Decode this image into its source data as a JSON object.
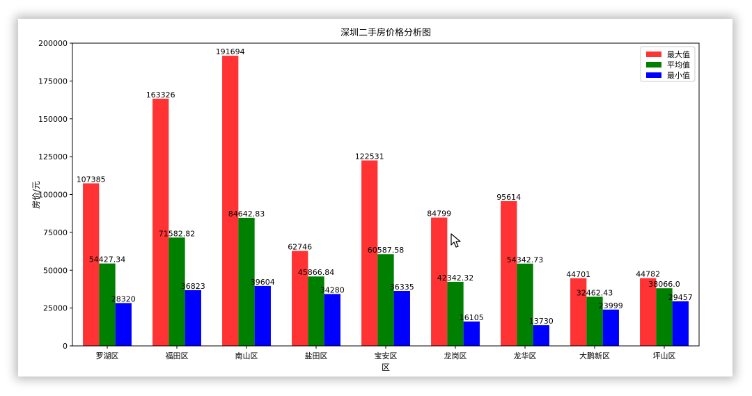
{
  "chart_data": {
    "type": "bar",
    "title": "深圳二手房价格分析图",
    "xlabel": "区",
    "ylabel": "房价/元",
    "ylim": [
      0,
      200000
    ],
    "yticks": [
      0,
      25000,
      50000,
      75000,
      100000,
      125000,
      150000,
      175000,
      200000
    ],
    "grid": false,
    "legend_position": "top-right",
    "categories": [
      "罗湖区",
      "福田区",
      "南山区",
      "盐田区",
      "宝安区",
      "龙岗区",
      "龙华区",
      "大鹏新区",
      "坪山区"
    ],
    "series": [
      {
        "name": "最大值",
        "color": "#ff3333",
        "values": [
          107385,
          163326,
          191694,
          62746,
          122531,
          84799,
          95614,
          44701,
          44782
        ],
        "labels": [
          "107385",
          "163326",
          "191694",
          "62746",
          "122531",
          "84799",
          "95614",
          "44701",
          "44782"
        ]
      },
      {
        "name": "平均值",
        "color": "#008000",
        "values": [
          54427.34,
          71582.82,
          84642.83,
          45866.84,
          60587.58,
          42342.32,
          54342.73,
          32462.43,
          38066.0
        ],
        "labels": [
          "54427.34",
          "71582.82",
          "84642.83",
          "45866.84",
          "60587.58",
          "42342.32",
          "54342.73",
          "32462.43",
          "38066.0"
        ]
      },
      {
        "name": "最小值",
        "color": "#0000ff",
        "values": [
          28320,
          36823,
          39604,
          34280,
          36335,
          16105,
          13730,
          23999,
          29457
        ],
        "labels": [
          "28320",
          "36823",
          "39604",
          "34280",
          "36335",
          "16105",
          "13730",
          "23999",
          "29457"
        ]
      }
    ]
  }
}
